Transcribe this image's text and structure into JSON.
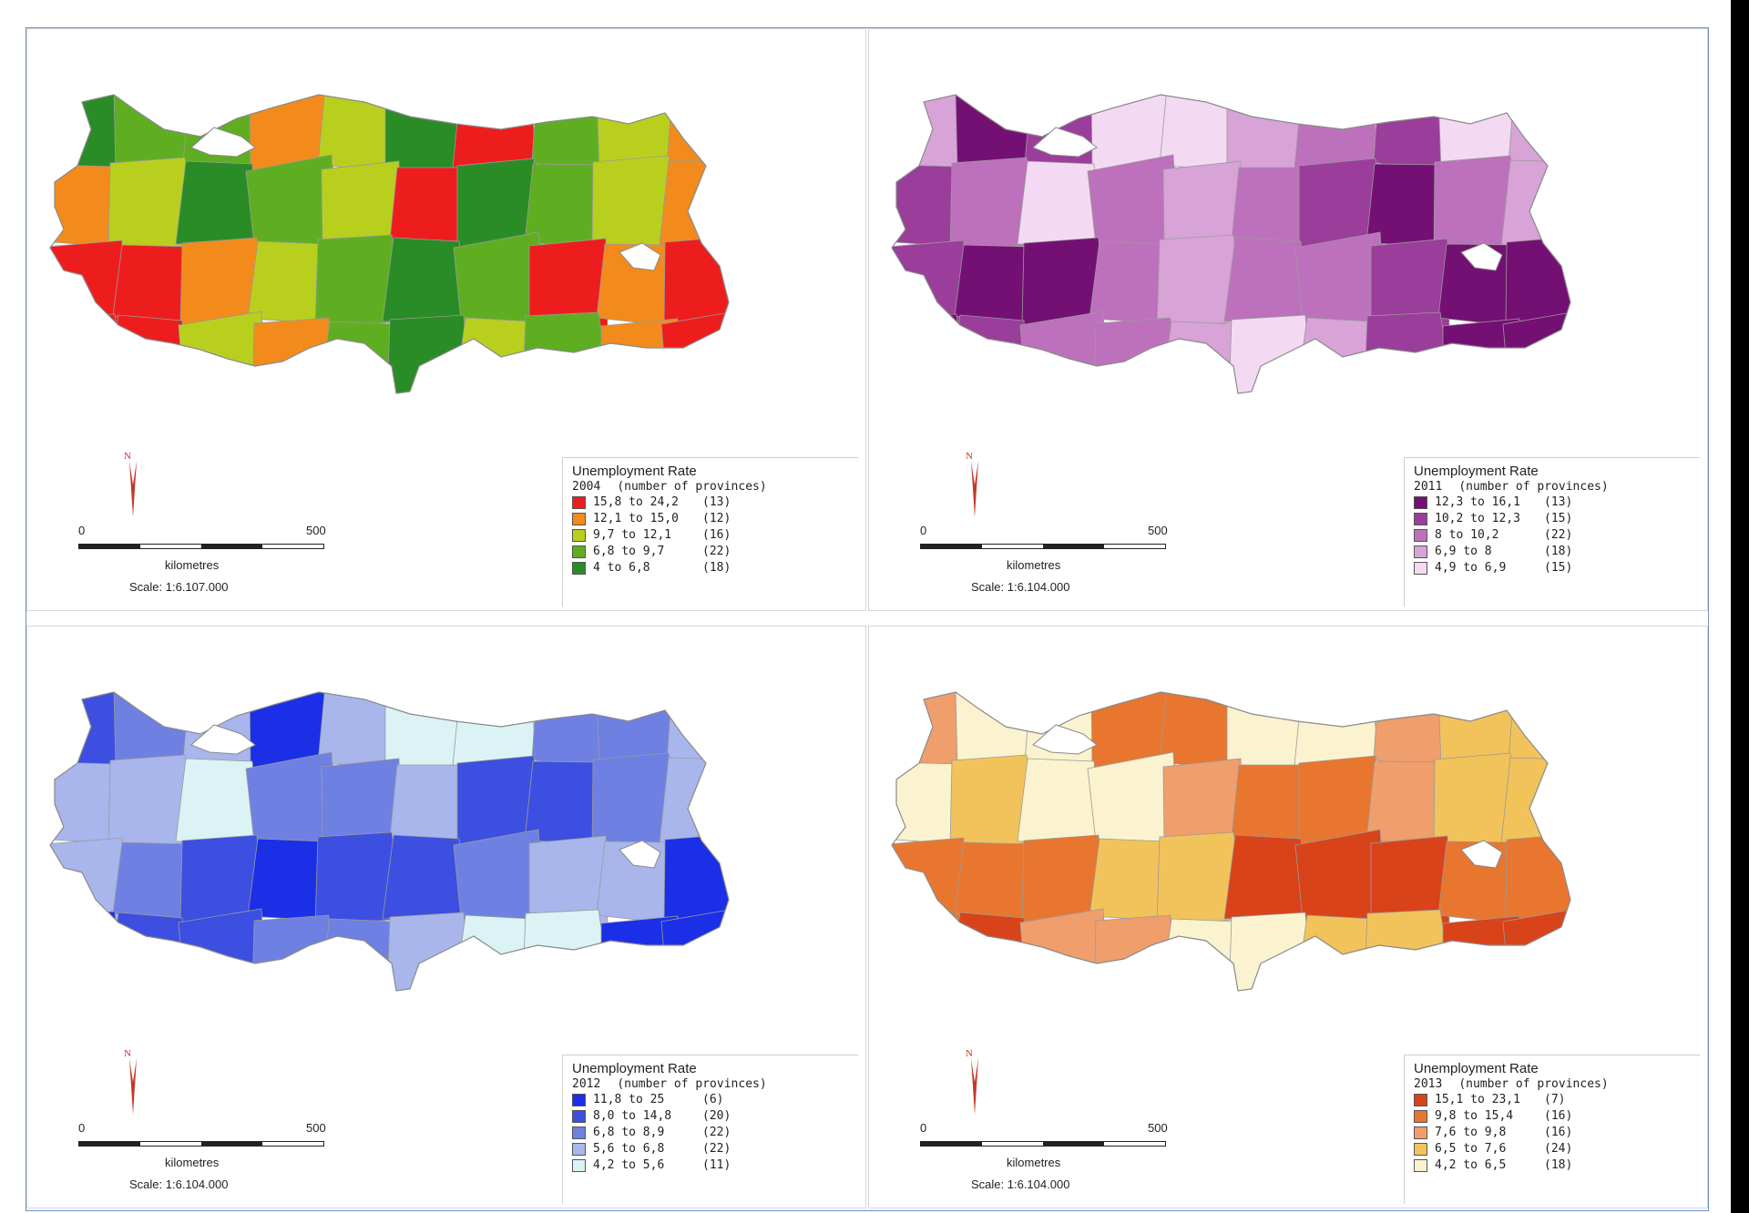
{
  "maps": [
    {
      "id": "map-2004",
      "legend_title": "Unemployment Rate",
      "year": "2004",
      "subtitle": "(number of provinces)",
      "classes": [
        {
          "range": "15,8 to 24,2",
          "count": "(13)",
          "color": "#ee1d1d"
        },
        {
          "range": "12,1 to 15,0",
          "count": "(12)",
          "color": "#f28b1c"
        },
        {
          "range": "9,7 to 12,1",
          "count": "(16)",
          "color": "#b9cf1e"
        },
        {
          "range": "6,8 to 9,7",
          "count": "(22)",
          "color": "#5fae22"
        },
        {
          "range": "4 to 6,8",
          "count": "(18)",
          "color": "#2a8c26"
        }
      ],
      "scale_zero": "0",
      "scale_max": "500",
      "scale_unit": "kilometres",
      "scale_text": "Scale: 1:6.107.000",
      "north": "N"
    },
    {
      "id": "map-2011",
      "legend_title": "Unemployment Rate",
      "year": "2011",
      "subtitle": "(number of provinces)",
      "classes": [
        {
          "range": "12,3 to 16,1",
          "count": "(13)",
          "color": "#741073"
        },
        {
          "range": "10,2 to 12,3",
          "count": "(15)",
          "color": "#9b3d9a"
        },
        {
          "range": "8 to 10,2",
          "count": "(22)",
          "color": "#bd71bc"
        },
        {
          "range": "6,9 to 8",
          "count": "(18)",
          "color": "#d8a3d7"
        },
        {
          "range": "4,9 to 6,9",
          "count": "(15)",
          "color": "#f3daf2"
        }
      ],
      "scale_zero": "0",
      "scale_max": "500",
      "scale_unit": "kilometres",
      "scale_text": "Scale: 1:6.104.000",
      "north": "N"
    },
    {
      "id": "map-2012",
      "legend_title": "Unemployment Rate",
      "year": "2012",
      "subtitle": "(number of provinces)",
      "classes": [
        {
          "range": "11,8 to 25",
          "count": "(6)",
          "color": "#1a2fe6"
        },
        {
          "range": "8,0 to 14,8",
          "count": "(20)",
          "color": "#3c4fe0"
        },
        {
          "range": "6,8 to 8,9",
          "count": "(22)",
          "color": "#6f80e3"
        },
        {
          "range": "5,6 to 6,8",
          "count": "(22)",
          "color": "#a8b6ec"
        },
        {
          "range": "4,2 to 5,6",
          "count": "(11)",
          "color": "#dbf3f5"
        }
      ],
      "scale_zero": "0",
      "scale_max": "500",
      "scale_unit": "kilometres",
      "scale_text": "Scale: 1:6.104.000",
      "north": "N"
    },
    {
      "id": "map-2013",
      "legend_title": "Unemployment Rate",
      "year": "2013",
      "subtitle": "(number of provinces)",
      "classes": [
        {
          "range": "15,1 to 23,1",
          "count": "(7)",
          "color": "#d9431a"
        },
        {
          "range": "9,8 to 15,4",
          "count": "(16)",
          "color": "#e8762f"
        },
        {
          "range": "7,6 to 9,8",
          "count": "(16)",
          "color": "#ef9e6c"
        },
        {
          "range": "6,5 to 7,6",
          "count": "(24)",
          "color": "#f2c35a"
        },
        {
          "range": "4,2 to 6,5",
          "count": "(18)",
          "color": "#fbf3cf"
        }
      ],
      "scale_zero": "0",
      "scale_max": "500",
      "scale_unit": "kilometres",
      "scale_text": "Scale: 1:6.104.000",
      "north": "N"
    }
  ]
}
